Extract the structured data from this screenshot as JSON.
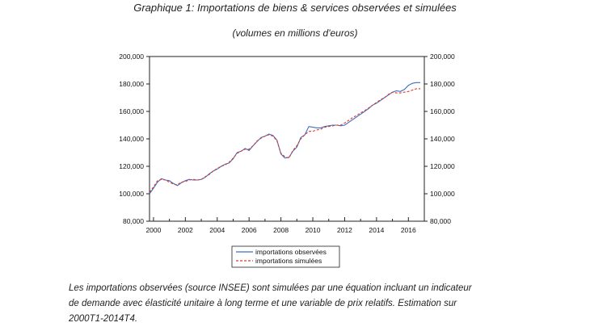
{
  "header": {
    "title": "Graphique 1: Importations de biens & services observées et simulées",
    "subtitle": "(volumes en millions d'euros)"
  },
  "note": {
    "lines": [
      "Les importations observées (source INSEE) sont simulées par une équation incluant un indicateur",
      "de demande avec élasticité unitaire à long terme et une variable de prix relatifs. Estimation sur",
      "2000T1-2014T4."
    ]
  },
  "chart_data": {
    "type": "line",
    "title": "Graphique 1: Importations de biens & services observées et simulées",
    "subtitle": "(volumes en millions d'euros)",
    "xlabel": "",
    "ylabel": "",
    "ylim": [
      80000,
      200000
    ],
    "xlim": [
      1999.75,
      2017.0
    ],
    "grid": false,
    "legend_position": "bottom-center",
    "y_ticks": [
      80000,
      100000,
      120000,
      140000,
      160000,
      180000,
      200000
    ],
    "y_tick_labels": [
      "80,000",
      "100,000",
      "120,000",
      "140,000",
      "160,000",
      "180,000",
      "200,000"
    ],
    "x_ticks": [
      "2000",
      "2002",
      "2004",
      "2006",
      "2008",
      "2010",
      "2012",
      "2014",
      "2016"
    ],
    "x": [
      1999.75,
      2000,
      2000.25,
      2000.5,
      2000.75,
      2001,
      2001.25,
      2001.5,
      2001.75,
      2002,
      2002.25,
      2002.5,
      2002.75,
      2003,
      2003.25,
      2003.5,
      2003.75,
      2004,
      2004.25,
      2004.5,
      2004.75,
      2005,
      2005.25,
      2005.5,
      2005.75,
      2006,
      2006.25,
      2006.5,
      2006.75,
      2007,
      2007.25,
      2007.5,
      2007.75,
      2008,
      2008.25,
      2008.5,
      2008.75,
      2009,
      2009.25,
      2009.5,
      2009.75,
      2010,
      2010.25,
      2010.5,
      2010.75,
      2011,
      2011.25,
      2011.5,
      2011.75,
      2012,
      2012.25,
      2012.5,
      2012.75,
      2013,
      2013.25,
      2013.5,
      2013.75,
      2014,
      2014.25,
      2014.5,
      2014.75,
      2015,
      2015.25,
      2015.5,
      2015.75,
      2016,
      2016.25,
      2016.5,
      2016.75
    ],
    "series": [
      {
        "name": "importations observées",
        "color": "#3a6fc4",
        "style": "solid",
        "values": [
          100000,
          104000,
          108500,
          111000,
          110000,
          109500,
          107500,
          106000,
          108000,
          109500,
          110500,
          110000,
          110000,
          110500,
          112000,
          114500,
          116500,
          118000,
          120000,
          121500,
          122500,
          125500,
          130000,
          131000,
          133000,
          131500,
          135000,
          138000,
          141000,
          142000,
          143500,
          142500,
          139000,
          129000,
          126000,
          126500,
          131000,
          134000,
          141000,
          143000,
          149000,
          148500,
          148000,
          148000,
          149000,
          149500,
          150000,
          150000,
          149500,
          150000,
          152000,
          154000,
          156000,
          158000,
          160000,
          162000,
          164500,
          166000,
          168000,
          170000,
          172000,
          174000,
          175000,
          174500,
          176000,
          179000,
          180500,
          181000,
          181000
        ]
      },
      {
        "name": "importations simulées",
        "color": "#e0392b",
        "style": "dashed",
        "values": [
          101000,
          105000,
          109500,
          110500,
          110000,
          108500,
          107000,
          106500,
          108500,
          109000,
          110000,
          110500,
          110000,
          110500,
          112500,
          114000,
          116500,
          118500,
          120000,
          121000,
          123000,
          126000,
          129500,
          131000,
          132500,
          132500,
          135000,
          138500,
          140500,
          142000,
          143000,
          142000,
          138500,
          129500,
          127000,
          126000,
          131500,
          135000,
          140000,
          143000,
          145500,
          145500,
          146500,
          147000,
          148500,
          149000,
          149500,
          150000,
          150000,
          151500,
          153500,
          155500,
          157000,
          159000,
          160500,
          162500,
          164500,
          166500,
          168500,
          170000,
          172500,
          174000,
          173500,
          173500,
          174000,
          174500,
          175500,
          176500,
          176500
        ]
      }
    ]
  }
}
